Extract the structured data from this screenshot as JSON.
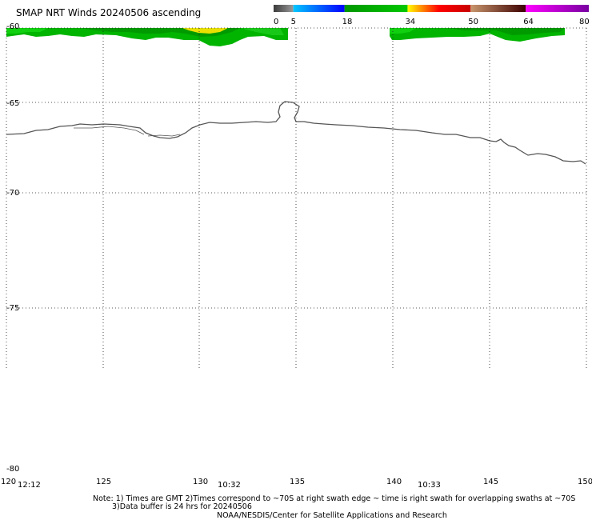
{
  "title": "SMAP NRT Winds 20240506 ascending",
  "colorbar": {
    "segments": [
      {
        "from": 0,
        "to": 5,
        "colors": [
          "#3a3a3a",
          "#9a9a9a"
        ]
      },
      {
        "from": 5,
        "to": 18,
        "colors": [
          "#00c8ff",
          "#0000ff"
        ]
      },
      {
        "from": 18,
        "to": 34,
        "colors": [
          "#009600",
          "#00c800"
        ]
      },
      {
        "from": 34,
        "to": 50,
        "colors": [
          "#ffff00",
          "#ff0000",
          "#c80000"
        ]
      },
      {
        "from": 50,
        "to": 64,
        "colors": [
          "#c8966e",
          "#3c0000"
        ]
      },
      {
        "from": 64,
        "to": 80,
        "colors": [
          "#ff00ff",
          "#7800a0"
        ]
      }
    ],
    "tick_labels": [
      "0",
      "5",
      "18",
      "34",
      "50",
      "64",
      "80"
    ]
  },
  "map": {
    "lon_range": [
      120,
      150
    ],
    "lat_range": [
      -60,
      -80
    ],
    "lat_labels": [
      "-60",
      "-65",
      "-70",
      "-75",
      "-80"
    ],
    "lon_labels": [
      "120",
      "125",
      "130",
      "135",
      "140",
      "145",
      "150"
    ],
    "time_labels": [
      "12:12",
      "10:32",
      "10:33"
    ],
    "land_color": "#ffffff",
    "coastline_color": "#555555",
    "wind_colors": [
      "#00aa00",
      "#10c010",
      "#008c00",
      "#e8e000"
    ]
  },
  "notes": [
    "Note: 1) Times are GMT 2)Times correspond to ~70S at right swath edge ~ time is right swath for overlapping swaths at ~70S",
    "3)Data buffer is 24 hrs for 20240506",
    "NOAA/NESDIS/Center for Satellite Applications and Research"
  ]
}
